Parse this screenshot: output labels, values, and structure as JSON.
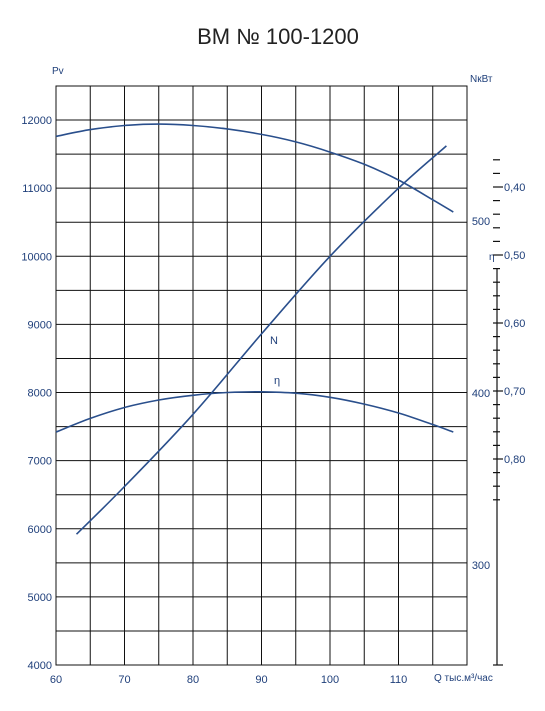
{
  "chart_data": {
    "type": "line",
    "title": "ВМ № 100-1200",
    "xlabel": "Q тыс.м³/час",
    "x_ticks": [
      60,
      70,
      80,
      90,
      100,
      110
    ],
    "xlim": [
      60,
      120
    ],
    "left_axis": {
      "label": "Pv",
      "ylim": [
        4000,
        12500
      ],
      "ticks": [
        4000,
        5000,
        6000,
        7000,
        8000,
        9000,
        10000,
        11000,
        12000
      ]
    },
    "power_axis": {
      "label": "NкВт",
      "ticks": [
        300,
        400,
        500
      ],
      "tick_labels": [
        "300",
        "400",
        "500"
      ]
    },
    "eff_axis": {
      "label": "η",
      "ticks": [
        0.4,
        0.5,
        0.6,
        0.7,
        0.8
      ],
      "tick_labels": [
        "0,40",
        "0,50",
        "0,60",
        "0,70",
        "0,80"
      ]
    },
    "series": [
      {
        "name": "",
        "axis": "left",
        "x": [
          60,
          65,
          70,
          75,
          80,
          85,
          90,
          95,
          100,
          105,
          110,
          115,
          118
        ],
        "y": [
          11760,
          11860,
          11920,
          11940,
          11920,
          11870,
          11790,
          11680,
          11530,
          11350,
          11120,
          10830,
          10650
        ]
      },
      {
        "name": "N",
        "axis": "left",
        "x": [
          63,
          70,
          80,
          90,
          100,
          110,
          117
        ],
        "y": [
          5920,
          6620,
          7680,
          8860,
          10000,
          11000,
          11620
        ]
      },
      {
        "name": "η",
        "axis": "left",
        "x": [
          60,
          65,
          70,
          75,
          80,
          85,
          90,
          95,
          100,
          105,
          110,
          115,
          118
        ],
        "y": [
          7420,
          7620,
          7780,
          7890,
          7960,
          8000,
          8010,
          7990,
          7930,
          7830,
          7700,
          7530,
          7420
        ]
      }
    ]
  }
}
